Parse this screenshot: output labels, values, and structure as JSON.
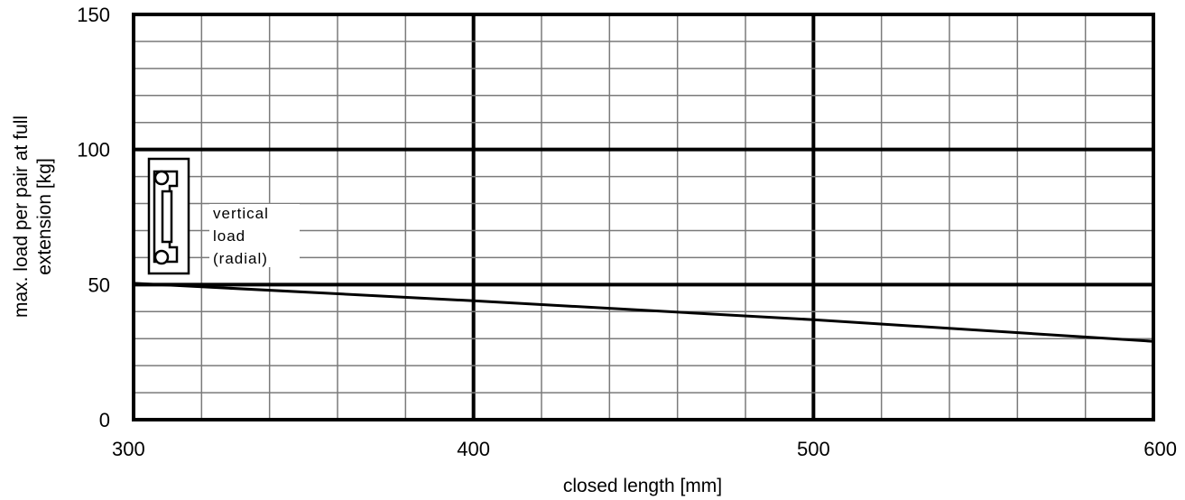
{
  "chart_data": {
    "type": "line",
    "title": "",
    "xlabel": "closed  length [mm]",
    "ylabel": [
      "max. load  per pair   at full",
      "extension [kg]"
    ],
    "xlim": [
      300,
      600
    ],
    "ylim": [
      0,
      150
    ],
    "x_ticks": [
      "300",
      "400",
      "500",
      "600"
    ],
    "y_ticks": [
      "0",
      "50",
      "100",
      "150"
    ],
    "grid": true,
    "series": [
      {
        "x": [
          300,
          400,
          500,
          600
        ],
        "y": [
          50.5,
          44,
          37,
          29
        ]
      }
    ],
    "annotation": {
      "lines": [
        "vertical",
        "load",
        "(radial)"
      ]
    }
  }
}
